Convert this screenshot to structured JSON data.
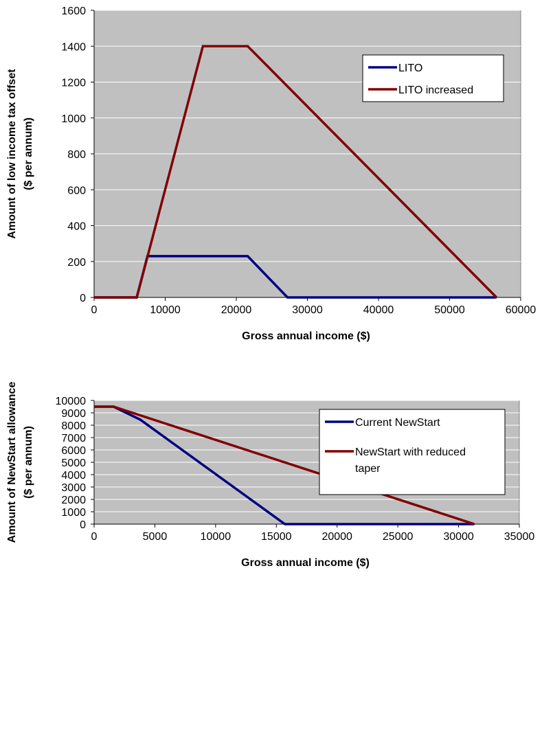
{
  "chart_data": [
    {
      "type": "line",
      "title": "",
      "xlabel": "Gross annual income ($)",
      "ylabel": [
        "Amount of low income tax offset",
        "($ per annum)"
      ],
      "xlim": [
        0,
        60000
      ],
      "ylim": [
        0,
        1600
      ],
      "xticks": [
        0,
        10000,
        20000,
        30000,
        40000,
        50000,
        60000
      ],
      "yticks": [
        0,
        200,
        400,
        600,
        800,
        1000,
        1200,
        1400,
        1600
      ],
      "grid": "horizontal",
      "legend_position": "top-right",
      "series": [
        {
          "name": "LITO",
          "color": "#000080",
          "x": [
            0,
            6000,
            7500,
            21600,
            27200,
            56600
          ],
          "y": [
            0,
            0,
            230,
            230,
            0,
            0
          ]
        },
        {
          "name": "LITO increased",
          "color": "#800000",
          "x": [
            0,
            6000,
            15300,
            21600,
            56600
          ],
          "y": [
            0,
            0,
            1400,
            1400,
            0
          ]
        }
      ]
    },
    {
      "type": "line",
      "title": "",
      "xlabel": "Gross annual income ($)",
      "ylabel": [
        "Amount of NewStart allowance",
        "($ per annum)"
      ],
      "xlim": [
        0,
        35000
      ],
      "ylim": [
        0,
        10000
      ],
      "xticks": [
        0,
        5000,
        10000,
        15000,
        20000,
        25000,
        30000,
        35000
      ],
      "yticks": [
        0,
        1000,
        2000,
        3000,
        4000,
        5000,
        6000,
        7000,
        8000,
        9000,
        10000
      ],
      "grid": "horizontal",
      "legend_position": "top-right",
      "series": [
        {
          "name": [
            "Current NewStart"
          ],
          "color": "#000080",
          "x": [
            0,
            1600,
            3800,
            15700,
            31300
          ],
          "y": [
            9500,
            9500,
            8450,
            0,
            0
          ]
        },
        {
          "name": [
            "NewStart with reduced",
            "taper"
          ],
          "color": "#800000",
          "x": [
            0,
            1600,
            31300
          ],
          "y": [
            9500,
            9500,
            0
          ]
        }
      ]
    }
  ]
}
